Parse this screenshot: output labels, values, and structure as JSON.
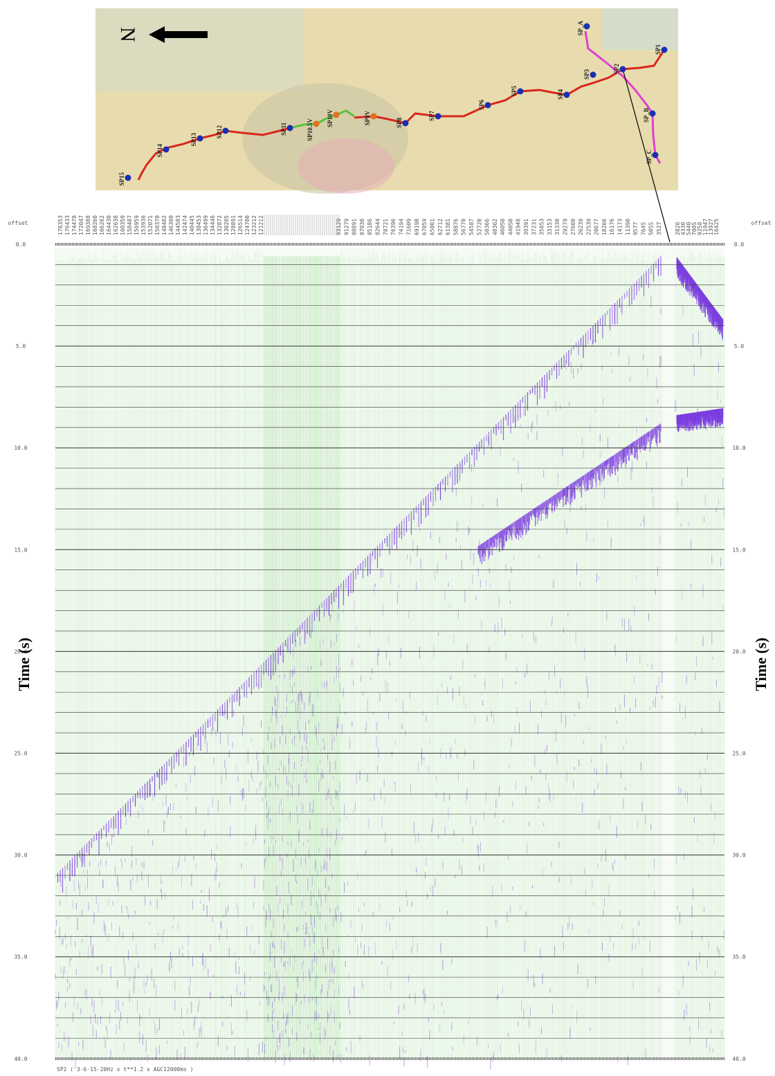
{
  "map": {
    "north_label": "N",
    "shot_points": [
      "SP15",
      "SP14",
      "SP13",
      "SP12",
      "SP11",
      "SP10.5V",
      "SP10V",
      "SP9V",
      "SP8",
      "SP7",
      "SP6",
      "SP5",
      "SP4",
      "SP3",
      "SP2",
      "SP1",
      "SP_A",
      "SP_B",
      "SP_C"
    ]
  },
  "section": {
    "offset_label": "offset",
    "offsets": [
      "178353",
      "176433",
      "174478",
      "172047",
      "169388",
      "168260",
      "166262",
      "164430",
      "162638",
      "160350",
      "158487",
      "156959",
      "153936",
      "152071",
      "150370",
      "148482",
      "146300",
      "144583",
      "142474",
      "140445",
      "138453",
      "136499",
      "134446",
      "132872",
      "130205",
      "128891",
      "126514",
      "124700",
      "123212",
      "121212",
      "93129",
      "91279",
      "88891",
      "87030",
      "85186",
      "82644",
      "78721",
      "76396",
      "74194",
      "71609",
      "69198",
      "67059",
      "65001",
      "62712",
      "61381",
      "58876",
      "56770",
      "54587",
      "52720",
      "50366",
      "48362",
      "46050",
      "44050",
      "41948",
      "39391",
      "37231",
      "35853",
      "33153",
      "31330",
      "29279",
      "27600",
      "26239",
      "22539",
      "20677",
      "18266",
      "16176",
      "14173",
      "11390",
      "9577",
      "7645",
      "5055",
      "3527"
    ],
    "offsets_right": [
      "2826",
      "4330",
      "5440",
      "7085",
      "9258",
      "11947",
      "13927",
      "16425"
    ],
    "time_ticks": [
      "0.0",
      "5.0",
      "10.0",
      "15.0",
      "20.0",
      "25.0",
      "30.0",
      "35.0",
      "40.0"
    ],
    "y_title": "Time (s)",
    "caption": "SP2 ( 3-6-15-20Hz x t**1.2 x AGC12000ms )"
  }
}
